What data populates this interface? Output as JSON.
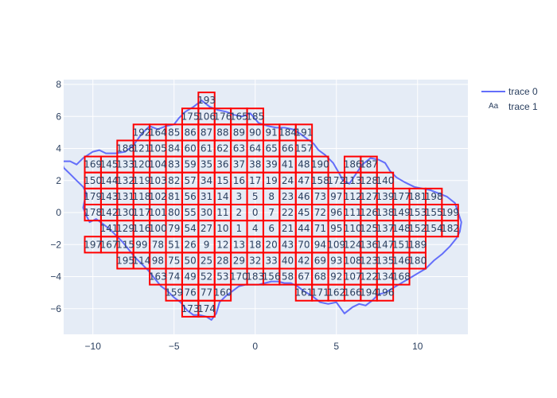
{
  "chart_data": {
    "type": "scatter",
    "plot_background": "#e5ecf6",
    "grid": true,
    "xlim": [
      -11.8,
      13.1
    ],
    "ylim": [
      -7.6,
      8.3
    ],
    "x_ticks": [
      -10,
      -5,
      0,
      5,
      10
    ],
    "y_ticks": [
      -6,
      -4,
      -2,
      0,
      2,
      4,
      6,
      8
    ],
    "x_tick_labels": [
      "−10",
      "−5",
      "0",
      "5",
      "10"
    ],
    "y_tick_labels": [
      "−6",
      "−4",
      "−2",
      "0",
      "2",
      "4",
      "6",
      "8"
    ],
    "legend_position": "top-right",
    "series": [
      {
        "name": "trace 0",
        "mode": "lines",
        "color": "#636efa",
        "x": [
          -11.8,
          -11.4,
          -11.0,
          -10.6,
          -10.3,
          -10.0,
          -9.6,
          -9.2,
          -8.6,
          -8.0,
          -7.5,
          -7.0,
          -6.5,
          -6.0,
          -5.5,
          -5.0,
          -4.7,
          -4.3,
          -3.8,
          -3.3,
          -2.8,
          -2.3,
          -1.8,
          -1.3,
          -0.8,
          -0.3,
          0.2,
          0.8,
          1.3,
          1.8,
          2.3,
          2.8,
          3.2,
          3.6,
          3.9,
          4.3,
          4.8,
          5.2,
          5.4,
          5.8,
          6.2,
          6.6,
          7.1,
          7.6,
          8.0,
          8.3,
          8.7,
          9.2,
          9.8,
          10.3,
          10.8,
          11.3,
          11.8,
          12.3,
          12.7,
          12.6,
          12.4,
          12.0,
          11.5,
          11.0,
          10.5,
          10.0,
          9.5,
          9.0,
          8.5,
          8.0,
          7.6,
          7.2,
          6.8,
          6.4,
          6.0,
          5.5,
          5.0,
          4.5,
          4.0,
          3.5,
          3.0,
          2.6,
          2.2,
          1.8,
          1.4,
          1.0,
          0.6,
          0.2,
          -0.2,
          -0.6,
          -1.0,
          -1.4,
          -1.8,
          -2.2,
          -2.4,
          -2.7,
          -3.0,
          -3.4,
          -3.8,
          -4.2,
          -4.6,
          -5.0,
          -5.4,
          -5.8,
          -6.2,
          -6.6,
          -7.0,
          -7.4,
          -7.8,
          -8.2,
          -8.6,
          -9.0,
          -9.4,
          -9.8,
          -10.2,
          -10.4,
          -10.6,
          -10.5,
          -10.4,
          -10.6,
          -11.0,
          -11.4,
          -11.8,
          -11.9,
          -11.8
        ],
        "y": [
          3.2,
          3.2,
          3.0,
          3.4,
          3.6,
          3.8,
          3.9,
          3.7,
          3.7,
          3.8,
          4.2,
          4.9,
          5.4,
          5.2,
          5.4,
          5.5,
          5.9,
          6.3,
          6.6,
          7.0,
          6.6,
          6.4,
          6.3,
          6.1,
          6.0,
          6.2,
          5.6,
          5.4,
          5.3,
          5.3,
          5.2,
          4.9,
          4.6,
          4.3,
          3.9,
          3.6,
          3.1,
          2.4,
          2.0,
          1.8,
          2.4,
          3.0,
          3.4,
          3.3,
          3.1,
          2.6,
          2.2,
          1.9,
          1.6,
          1.5,
          1.4,
          1.2,
          1.0,
          0.6,
          -0.6,
          -1.2,
          -1.6,
          -2.1,
          -2.6,
          -3.0,
          -3.5,
          -3.8,
          -4.1,
          -4.4,
          -4.7,
          -5.0,
          -5.1,
          -5.5,
          -5.8,
          -5.7,
          -5.9,
          -6.3,
          -5.6,
          -5.7,
          -5.6,
          -5.2,
          -4.9,
          -4.6,
          -4.4,
          -4.4,
          -4.3,
          -4.3,
          -4.4,
          -4.5,
          -4.5,
          -4.5,
          -4.6,
          -4.9,
          -5.2,
          -5.6,
          -6.3,
          -6.7,
          -6.5,
          -6.4,
          -6.4,
          -6.1,
          -5.6,
          -5.3,
          -4.9,
          -4.6,
          -4.1,
          -3.6,
          -3.2,
          -2.8,
          -2.3,
          -1.8,
          -1.4,
          -1.0,
          -0.7,
          -0.4,
          -0.6,
          -0.2,
          0.3,
          0.8,
          1.2,
          1.6,
          2.0,
          2.4,
          2.8,
          3.1,
          3.2
        ]
      },
      {
        "name": "trace 1",
        "mode": "text",
        "cell_width": 1.0,
        "cell_height": 1.0,
        "cells": [
          [
            -3,
            7,
            "193"
          ],
          [
            -4,
            6,
            "175"
          ],
          [
            -3,
            6,
            "106"
          ],
          [
            -2,
            6,
            "176"
          ],
          [
            -1,
            6,
            "165"
          ],
          [
            0,
            6,
            "185"
          ],
          [
            -7,
            5,
            "192"
          ],
          [
            -6,
            5,
            "164"
          ],
          [
            -5,
            5,
            "85"
          ],
          [
            -4,
            5,
            "86"
          ],
          [
            -3,
            5,
            "87"
          ],
          [
            -2,
            5,
            "88"
          ],
          [
            -1,
            5,
            "89"
          ],
          [
            0,
            5,
            "90"
          ],
          [
            1,
            5,
            "91"
          ],
          [
            2,
            5,
            "184"
          ],
          [
            3,
            5,
            "191"
          ],
          [
            -8,
            4,
            "188"
          ],
          [
            -7,
            4,
            "121"
          ],
          [
            -6,
            4,
            "105"
          ],
          [
            -5,
            4,
            "84"
          ],
          [
            -4,
            4,
            "60"
          ],
          [
            -3,
            4,
            "61"
          ],
          [
            -2,
            4,
            "62"
          ],
          [
            -1,
            4,
            "63"
          ],
          [
            0,
            4,
            "64"
          ],
          [
            1,
            4,
            "65"
          ],
          [
            2,
            4,
            "66"
          ],
          [
            3,
            4,
            "157"
          ],
          [
            -10,
            3,
            "169"
          ],
          [
            -9,
            3,
            "145"
          ],
          [
            -8,
            3,
            "133"
          ],
          [
            -7,
            3,
            "120"
          ],
          [
            -6,
            3,
            "104"
          ],
          [
            -5,
            3,
            "83"
          ],
          [
            -4,
            3,
            "59"
          ],
          [
            -3,
            3,
            "35"
          ],
          [
            -2,
            3,
            "36"
          ],
          [
            -1,
            3,
            "37"
          ],
          [
            0,
            3,
            "38"
          ],
          [
            1,
            3,
            "39"
          ],
          [
            2,
            3,
            "41"
          ],
          [
            3,
            3,
            "48"
          ],
          [
            4,
            3,
            "190"
          ],
          [
            6,
            3,
            "186"
          ],
          [
            7,
            3,
            "187"
          ],
          [
            -10,
            2,
            "150"
          ],
          [
            -9,
            2,
            "144"
          ],
          [
            -8,
            2,
            "132"
          ],
          [
            -7,
            2,
            "119"
          ],
          [
            -6,
            2,
            "103"
          ],
          [
            -5,
            2,
            "82"
          ],
          [
            -4,
            2,
            "57"
          ],
          [
            -3,
            2,
            "34"
          ],
          [
            -2,
            2,
            "15"
          ],
          [
            -1,
            2,
            "16"
          ],
          [
            0,
            2,
            "17"
          ],
          [
            1,
            2,
            "19"
          ],
          [
            2,
            2,
            "24"
          ],
          [
            3,
            2,
            "47"
          ],
          [
            4,
            2,
            "158"
          ],
          [
            5,
            2,
            "172"
          ],
          [
            6,
            2,
            "113"
          ],
          [
            7,
            2,
            "128"
          ],
          [
            8,
            2,
            "140"
          ],
          [
            -10,
            1,
            "179"
          ],
          [
            -9,
            1,
            "143"
          ],
          [
            -8,
            1,
            "131"
          ],
          [
            -7,
            1,
            "118"
          ],
          [
            -6,
            1,
            "102"
          ],
          [
            -5,
            1,
            "81"
          ],
          [
            -4,
            1,
            "56"
          ],
          [
            -3,
            1,
            "31"
          ],
          [
            -2,
            1,
            "14"
          ],
          [
            -1,
            1,
            "3"
          ],
          [
            0,
            1,
            "5"
          ],
          [
            1,
            1,
            "8"
          ],
          [
            2,
            1,
            "23"
          ],
          [
            3,
            1,
            "46"
          ],
          [
            4,
            1,
            "73"
          ],
          [
            5,
            1,
            "97"
          ],
          [
            6,
            1,
            "112"
          ],
          [
            7,
            1,
            "127"
          ],
          [
            8,
            1,
            "139"
          ],
          [
            9,
            1,
            "177"
          ],
          [
            10,
            1,
            "181"
          ],
          [
            11,
            1,
            "198"
          ],
          [
            -10,
            0,
            "178"
          ],
          [
            -9,
            0,
            "142"
          ],
          [
            -8,
            0,
            "130"
          ],
          [
            -7,
            0,
            "117"
          ],
          [
            -6,
            0,
            "101"
          ],
          [
            -5,
            0,
            "80"
          ],
          [
            -4,
            0,
            "55"
          ],
          [
            -3,
            0,
            "30"
          ],
          [
            -2,
            0,
            "11"
          ],
          [
            -1,
            0,
            "2"
          ],
          [
            0,
            0,
            "0"
          ],
          [
            1,
            0,
            "7"
          ],
          [
            2,
            0,
            "22"
          ],
          [
            3,
            0,
            "45"
          ],
          [
            4,
            0,
            "72"
          ],
          [
            5,
            0,
            "96"
          ],
          [
            6,
            0,
            "111"
          ],
          [
            7,
            0,
            "126"
          ],
          [
            8,
            0,
            "138"
          ],
          [
            9,
            0,
            "149"
          ],
          [
            10,
            0,
            "153"
          ],
          [
            11,
            0,
            "155"
          ],
          [
            12,
            0,
            "199"
          ],
          [
            -9,
            -1,
            "141"
          ],
          [
            -8,
            -1,
            "129"
          ],
          [
            -7,
            -1,
            "116"
          ],
          [
            -6,
            -1,
            "100"
          ],
          [
            -5,
            -1,
            "79"
          ],
          [
            -4,
            -1,
            "54"
          ],
          [
            -3,
            -1,
            "27"
          ],
          [
            -2,
            -1,
            "10"
          ],
          [
            -1,
            -1,
            "1"
          ],
          [
            0,
            -1,
            "4"
          ],
          [
            1,
            -1,
            "6"
          ],
          [
            2,
            -1,
            "21"
          ],
          [
            3,
            -1,
            "44"
          ],
          [
            4,
            -1,
            "71"
          ],
          [
            5,
            -1,
            "95"
          ],
          [
            6,
            -1,
            "110"
          ],
          [
            7,
            -1,
            "125"
          ],
          [
            8,
            -1,
            "137"
          ],
          [
            9,
            -1,
            "148"
          ],
          [
            10,
            -1,
            "152"
          ],
          [
            11,
            -1,
            "154"
          ],
          [
            12,
            -1,
            "182"
          ],
          [
            -10,
            -2,
            "197"
          ],
          [
            -9,
            -2,
            "167"
          ],
          [
            -8,
            -2,
            "115"
          ],
          [
            -7,
            -2,
            "99"
          ],
          [
            -6,
            -2,
            "78"
          ],
          [
            -5,
            -2,
            "51"
          ],
          [
            -4,
            -2,
            "26"
          ],
          [
            -3,
            -2,
            "9"
          ],
          [
            -2,
            -2,
            "12"
          ],
          [
            -1,
            -2,
            "13"
          ],
          [
            0,
            -2,
            "18"
          ],
          [
            1,
            -2,
            "20"
          ],
          [
            2,
            -2,
            "43"
          ],
          [
            3,
            -2,
            "70"
          ],
          [
            4,
            -2,
            "94"
          ],
          [
            5,
            -2,
            "109"
          ],
          [
            6,
            -2,
            "124"
          ],
          [
            7,
            -2,
            "136"
          ],
          [
            8,
            -2,
            "147"
          ],
          [
            9,
            -2,
            "151"
          ],
          [
            10,
            -2,
            "189"
          ],
          [
            -8,
            -3,
            "195"
          ],
          [
            -7,
            -3,
            "114"
          ],
          [
            -6,
            -3,
            "98"
          ],
          [
            -5,
            -3,
            "75"
          ],
          [
            -4,
            -3,
            "50"
          ],
          [
            -3,
            -3,
            "25"
          ],
          [
            -2,
            -3,
            "28"
          ],
          [
            -1,
            -3,
            "29"
          ],
          [
            0,
            -3,
            "32"
          ],
          [
            1,
            -3,
            "33"
          ],
          [
            2,
            -3,
            "40"
          ],
          [
            3,
            -3,
            "42"
          ],
          [
            4,
            -3,
            "69"
          ],
          [
            5,
            -3,
            "93"
          ],
          [
            6,
            -3,
            "108"
          ],
          [
            7,
            -3,
            "123"
          ],
          [
            8,
            -3,
            "135"
          ],
          [
            9,
            -3,
            "146"
          ],
          [
            10,
            -3,
            "180"
          ],
          [
            -6,
            -4,
            "163"
          ],
          [
            -5,
            -4,
            "74"
          ],
          [
            -4,
            -4,
            "49"
          ],
          [
            -3,
            -4,
            "52"
          ],
          [
            -2,
            -4,
            "53"
          ],
          [
            -1,
            -4,
            "170"
          ],
          [
            0,
            -4,
            "183"
          ],
          [
            1,
            -4,
            "156"
          ],
          [
            2,
            -4,
            "58"
          ],
          [
            3,
            -4,
            "67"
          ],
          [
            4,
            -4,
            "68"
          ],
          [
            5,
            -4,
            "92"
          ],
          [
            6,
            -4,
            "107"
          ],
          [
            7,
            -4,
            "122"
          ],
          [
            8,
            -4,
            "134"
          ],
          [
            9,
            -4,
            "168"
          ],
          [
            -5,
            -5,
            "159"
          ],
          [
            -4,
            -5,
            "76"
          ],
          [
            -3,
            -5,
            "77"
          ],
          [
            -2,
            -5,
            "160"
          ],
          [
            3,
            -5,
            "161"
          ],
          [
            4,
            -5,
            "171"
          ],
          [
            5,
            -5,
            "162"
          ],
          [
            6,
            -5,
            "166"
          ],
          [
            7,
            -5,
            "194"
          ],
          [
            8,
            -5,
            "196"
          ],
          [
            -4,
            -6,
            "173"
          ],
          [
            -3,
            -6,
            "174"
          ]
        ]
      }
    ],
    "legend_marker_trace1": "Aa"
  }
}
